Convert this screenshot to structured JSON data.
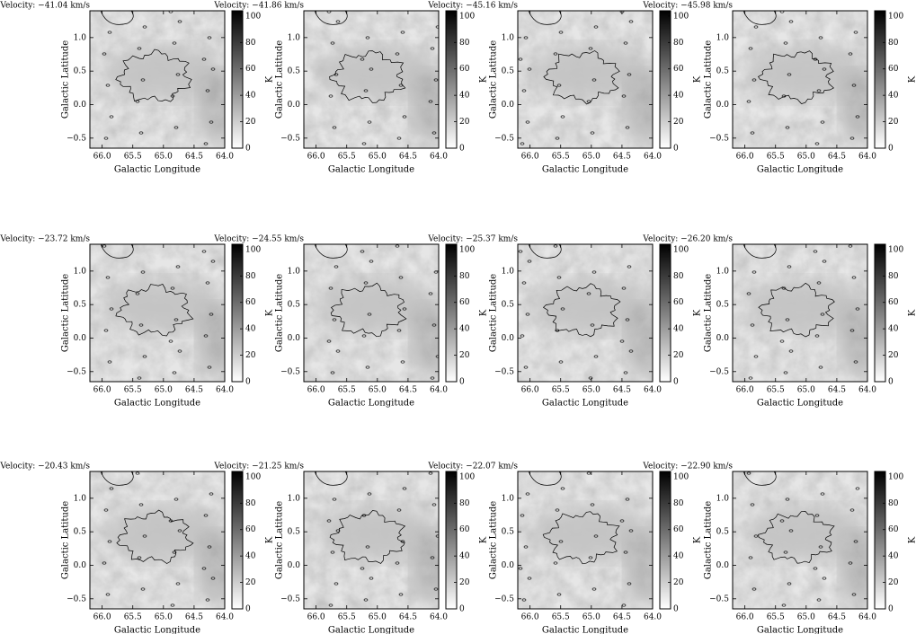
{
  "chart_data": [
    {
      "type": "heatmap",
      "title": "Velocity: −41.04 km/s",
      "xlabel": "Galactic Longitude",
      "ylabel": "Galactic Latitude",
      "xlim": [
        66.2,
        64.0
      ],
      "ylim": [
        -0.65,
        1.4
      ],
      "xticks": [
        {
          "value": 66,
          "label": "66.0"
        },
        65.5,
        {
          "value": 65,
          "label": "65.0"
        },
        64.5,
        {
          "value": 64,
          "label": "64.0"
        }
      ],
      "yticks": [
        {
          "value": -0.5,
          "label": "−0.5"
        },
        {
          "value": 0,
          "label": "0.0"
        },
        0.5,
        {
          "value": 1,
          "label": "1.0"
        }
      ],
      "colorbar": {
        "label": "K",
        "lim": [
          0,
          104
        ],
        "ticks": [
          0,
          20,
          40,
          60,
          80,
          100
        ]
      }
    },
    {
      "type": "heatmap",
      "title": "Velocity: −41.86 km/s",
      "xlabel": "Galactic Longitude",
      "ylabel": "Galactic Latitude",
      "xlim": [
        66.2,
        64.0
      ],
      "ylim": [
        -0.65,
        1.4
      ],
      "xticks": [
        {
          "value": 66,
          "label": "66.0"
        },
        65.5,
        {
          "value": 65,
          "label": "65.0"
        },
        64.5,
        {
          "value": 64,
          "label": "64.0"
        }
      ],
      "yticks": [
        {
          "value": -0.5,
          "label": "−0.5"
        },
        {
          "value": 0,
          "label": "0.0"
        },
        0.5,
        {
          "value": 1,
          "label": "1.0"
        }
      ],
      "colorbar": {
        "label": "K",
        "lim": [
          0,
          104
        ],
        "ticks": [
          0,
          20,
          40,
          60,
          80,
          100
        ]
      }
    },
    {
      "type": "heatmap",
      "title": "Velocity: −45.16 km/s",
      "xlabel": "Galactic Longitude",
      "ylabel": "Galactic Latitude",
      "xlim": [
        66.2,
        64.0
      ],
      "ylim": [
        -0.65,
        1.4
      ],
      "xticks": [
        {
          "value": 66,
          "label": "66.0"
        },
        65.5,
        {
          "value": 65,
          "label": "65.0"
        },
        64.5,
        {
          "value": 64,
          "label": "64.0"
        }
      ],
      "yticks": [
        {
          "value": -0.5,
          "label": "−0.5"
        },
        {
          "value": 0,
          "label": "0.0"
        },
        0.5,
        {
          "value": 1,
          "label": "1.0"
        }
      ],
      "colorbar": {
        "label": "K",
        "lim": [
          0,
          104
        ],
        "ticks": [
          0,
          20,
          40,
          60,
          80,
          100
        ]
      }
    },
    {
      "type": "heatmap",
      "title": "Velocity: −45.98 km/s",
      "xlabel": "Galactic Longitude",
      "ylabel": "Galactic Latitude",
      "xlim": [
        66.2,
        64.0
      ],
      "ylim": [
        -0.65,
        1.4
      ],
      "xticks": [
        {
          "value": 66,
          "label": "66.0"
        },
        65.5,
        {
          "value": 65,
          "label": "65.0"
        },
        64.5,
        {
          "value": 64,
          "label": "64.0"
        }
      ],
      "yticks": [
        {
          "value": -0.5,
          "label": "−0.5"
        },
        {
          "value": 0,
          "label": "0.0"
        },
        0.5,
        {
          "value": 1,
          "label": "1.0"
        }
      ],
      "colorbar": {
        "label": "K",
        "lim": [
          0,
          104
        ],
        "ticks": [
          0,
          20,
          40,
          60,
          80,
          100
        ]
      }
    },
    {
      "type": "heatmap",
      "title": "Velocity: −23.72 km/s",
      "xlabel": "Galactic Longitude",
      "ylabel": "Galactic Latitude",
      "xlim": [
        66.2,
        64.0
      ],
      "ylim": [
        -0.65,
        1.4
      ],
      "xticks": [
        {
          "value": 66,
          "label": "66.0"
        },
        65.5,
        {
          "value": 65,
          "label": "65.0"
        },
        64.5,
        {
          "value": 64,
          "label": "64.0"
        }
      ],
      "yticks": [
        {
          "value": -0.5,
          "label": "−0.5"
        },
        {
          "value": 0,
          "label": "0.0"
        },
        0.5,
        {
          "value": 1,
          "label": "1.0"
        }
      ],
      "colorbar": {
        "label": "K",
        "lim": [
          0,
          104
        ],
        "ticks": [
          0,
          20,
          40,
          60,
          80,
          100
        ]
      }
    },
    {
      "type": "heatmap",
      "title": "Velocity: −24.55 km/s",
      "xlabel": "Galactic Longitude",
      "ylabel": "Galactic Latitude",
      "xlim": [
        66.2,
        64.0
      ],
      "ylim": [
        -0.65,
        1.4
      ],
      "xticks": [
        {
          "value": 66,
          "label": "66.0"
        },
        65.5,
        {
          "value": 65,
          "label": "65.0"
        },
        64.5,
        {
          "value": 64,
          "label": "64.0"
        }
      ],
      "yticks": [
        {
          "value": -0.5,
          "label": "−0.5"
        },
        {
          "value": 0,
          "label": "0.0"
        },
        0.5,
        {
          "value": 1,
          "label": "1.0"
        }
      ],
      "colorbar": {
        "label": "K",
        "lim": [
          0,
          104
        ],
        "ticks": [
          0,
          20,
          40,
          60,
          80,
          100
        ]
      }
    },
    {
      "type": "heatmap",
      "title": "Velocity: −25.37 km/s",
      "xlabel": "Galactic Longitude",
      "ylabel": "Galactic Latitude",
      "xlim": [
        66.2,
        64.0
      ],
      "ylim": [
        -0.65,
        1.4
      ],
      "xticks": [
        {
          "value": 66,
          "label": "66.0"
        },
        65.5,
        {
          "value": 65,
          "label": "65.0"
        },
        64.5,
        {
          "value": 64,
          "label": "64.0"
        }
      ],
      "yticks": [
        {
          "value": -0.5,
          "label": "−0.5"
        },
        {
          "value": 0,
          "label": "0.0"
        },
        0.5,
        {
          "value": 1,
          "label": "1.0"
        }
      ],
      "colorbar": {
        "label": "K",
        "lim": [
          0,
          104
        ],
        "ticks": [
          0,
          20,
          40,
          60,
          80,
          100
        ]
      }
    },
    {
      "type": "heatmap",
      "title": "Velocity: −26.20 km/s",
      "xlabel": "Galactic Longitude",
      "ylabel": "Galactic Latitude",
      "xlim": [
        66.2,
        64.0
      ],
      "ylim": [
        -0.65,
        1.4
      ],
      "xticks": [
        {
          "value": 66,
          "label": "66.0"
        },
        65.5,
        {
          "value": 65,
          "label": "65.0"
        },
        64.5,
        {
          "value": 64,
          "label": "64.0"
        }
      ],
      "yticks": [
        {
          "value": -0.5,
          "label": "−0.5"
        },
        {
          "value": 0,
          "label": "0.0"
        },
        0.5,
        {
          "value": 1,
          "label": "1.0"
        }
      ],
      "colorbar": {
        "label": "K",
        "lim": [
          0,
          104
        ],
        "ticks": [
          0,
          20,
          40,
          60,
          80,
          100
        ]
      }
    },
    {
      "type": "heatmap",
      "title": "Velocity: −20.43 km/s",
      "xlabel": "Galactic Longitude",
      "ylabel": "Galactic Latitude",
      "xlim": [
        66.2,
        64.0
      ],
      "ylim": [
        -0.65,
        1.4
      ],
      "xticks": [
        {
          "value": 66,
          "label": "66.0"
        },
        65.5,
        {
          "value": 65,
          "label": "65.0"
        },
        64.5,
        {
          "value": 64,
          "label": "64.0"
        }
      ],
      "yticks": [
        {
          "value": -0.5,
          "label": "−0.5"
        },
        {
          "value": 0,
          "label": "0.0"
        },
        0.5,
        {
          "value": 1,
          "label": "1.0"
        }
      ],
      "colorbar": {
        "label": "K",
        "lim": [
          0,
          104
        ],
        "ticks": [
          0,
          20,
          40,
          60,
          80,
          100
        ]
      }
    },
    {
      "type": "heatmap",
      "title": "Velocity: −21.25 km/s",
      "xlabel": "Galactic Longitude",
      "ylabel": "Galactic Latitude",
      "xlim": [
        66.2,
        64.0
      ],
      "ylim": [
        -0.65,
        1.4
      ],
      "xticks": [
        {
          "value": 66,
          "label": "66.0"
        },
        65.5,
        {
          "value": 65,
          "label": "65.0"
        },
        64.5,
        {
          "value": 64,
          "label": "64.0"
        }
      ],
      "yticks": [
        {
          "value": -0.5,
          "label": "−0.5"
        },
        {
          "value": 0,
          "label": "0.0"
        },
        0.5,
        {
          "value": 1,
          "label": "1.0"
        }
      ],
      "colorbar": {
        "label": "K",
        "lim": [
          0,
          104
        ],
        "ticks": [
          0,
          20,
          40,
          60,
          80,
          100
        ]
      }
    },
    {
      "type": "heatmap",
      "title": "Velocity: −22.07 km/s",
      "xlabel": "Galactic Longitude",
      "ylabel": "Galactic Latitude",
      "xlim": [
        66.2,
        64.0
      ],
      "ylim": [
        -0.65,
        1.4
      ],
      "xticks": [
        {
          "value": 66,
          "label": "66.0"
        },
        65.5,
        {
          "value": 65,
          "label": "65.0"
        },
        64.5,
        {
          "value": 64,
          "label": "64.0"
        }
      ],
      "yticks": [
        {
          "value": -0.5,
          "label": "−0.5"
        },
        {
          "value": 0,
          "label": "0.0"
        },
        0.5,
        {
          "value": 1,
          "label": "1.0"
        }
      ],
      "colorbar": {
        "label": "K",
        "lim": [
          0,
          104
        ],
        "ticks": [
          0,
          20,
          40,
          60,
          80,
          100
        ]
      }
    },
    {
      "type": "heatmap",
      "title": "Velocity: −22.90 km/s",
      "xlabel": "Galactic Longitude",
      "ylabel": "Galactic Latitude",
      "xlim": [
        66.2,
        64.0
      ],
      "ylim": [
        -0.65,
        1.4
      ],
      "xticks": [
        {
          "value": 66,
          "label": "66.0"
        },
        65.5,
        {
          "value": 65,
          "label": "65.0"
        },
        64.5,
        {
          "value": 64,
          "label": "64.0"
        }
      ],
      "yticks": [
        {
          "value": -0.5,
          "label": "−0.5"
        },
        {
          "value": 0,
          "label": "0.0"
        },
        0.5,
        {
          "value": 1,
          "label": "1.0"
        }
      ],
      "colorbar": {
        "label": "K",
        "lim": [
          0,
          104
        ],
        "ticks": [
          0,
          20,
          40,
          60,
          80,
          100
        ]
      }
    }
  ]
}
